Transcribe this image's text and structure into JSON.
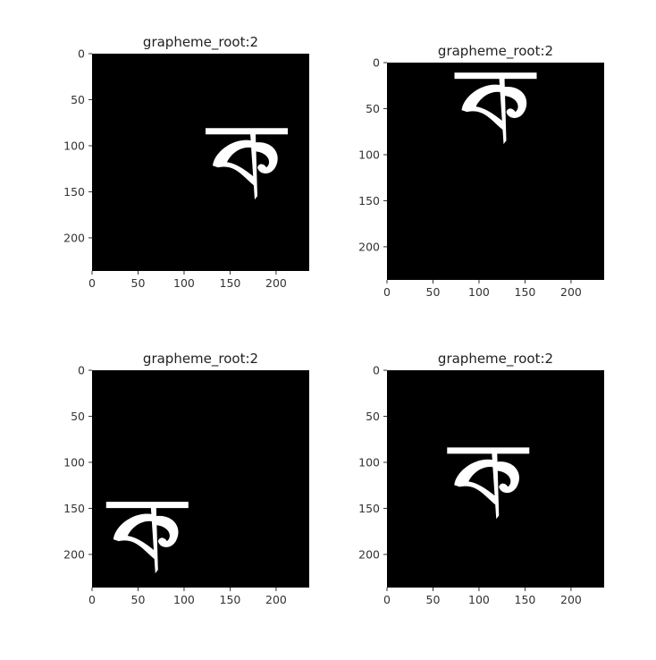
{
  "figure": {
    "panels": [
      {
        "title": "grapheme_root:2",
        "xticks": [
          "0",
          "50",
          "100",
          "150",
          "200"
        ],
        "yticks": [
          "0",
          "50",
          "100",
          "150",
          "200"
        ],
        "glyph_center": [
          168,
          110
        ],
        "bg_color": "#000000",
        "glyph_color": "#ffffff"
      },
      {
        "title": "grapheme_root:2",
        "xticks": [
          "0",
          "50",
          "100",
          "150",
          "200"
        ],
        "yticks": [
          "0",
          "50",
          "100",
          "150",
          "200"
        ],
        "glyph_center": [
          118,
          40
        ],
        "bg_color": "#000000",
        "glyph_color": "#ffffff"
      },
      {
        "title": "grapheme_root:2",
        "xticks": [
          "0",
          "50",
          "100",
          "150",
          "200"
        ],
        "yticks": [
          "0",
          "50",
          "100",
          "150",
          "200"
        ],
        "glyph_center": [
          60,
          172
        ],
        "bg_color": "#000000",
        "glyph_color": "#ffffff"
      },
      {
        "title": "grapheme_root:2",
        "xticks": [
          "0",
          "50",
          "100",
          "150",
          "200"
        ],
        "yticks": [
          "0",
          "50",
          "100",
          "150",
          "200"
        ],
        "glyph_center": [
          110,
          113
        ],
        "bg_color": "#000000",
        "glyph_color": "#ffffff"
      }
    ]
  }
}
